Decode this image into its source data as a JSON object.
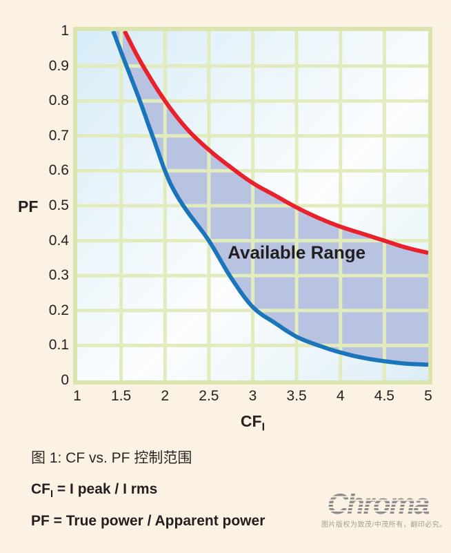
{
  "figure": {
    "caption": "图 1: CF vs. PF 控制范围",
    "formula_cf": {
      "main": "CF",
      "sub": "I",
      "rest": " = I peak / I rms"
    },
    "formula_pf": "PF = True power / Apparent power"
  },
  "logo": {
    "brand": "Chroma",
    "copyright": "图片版权为致茂/中茂所有，翻印必究。"
  },
  "colors": {
    "page_background": "#fcf2e4",
    "plot_border": "#d9e5ad",
    "grid": "#e2ebbc",
    "fill_between": "#b7c3e0",
    "upper_curve": "#e8212d",
    "lower_curve": "#1b75bb",
    "text": "#26211f",
    "logo_gray": "#8d8d8d"
  },
  "chart_data": {
    "type": "area",
    "title": "",
    "xlabel_main": "CF",
    "xlabel_sub": "I",
    "ylabel": "PF",
    "xlim": [
      1,
      5
    ],
    "ylim": [
      0,
      1
    ],
    "x_ticks": [
      "1",
      "1.5",
      "2",
      "2.5",
      "3",
      "3.5",
      "4",
      "4.5",
      "5"
    ],
    "y_ticks": [
      "1",
      "0.9",
      "0.8",
      "0.7",
      "0.6",
      "0.5",
      "0.4",
      "0.3",
      "0.2",
      "0.1",
      "0"
    ],
    "grid": {
      "x_step": 0.5,
      "y_step": 0.1,
      "on": true
    },
    "legend": "none",
    "annotation": {
      "text": "Available Range",
      "cf": 3.5,
      "pf": 0.365
    },
    "series": [
      {
        "name": "upper-limit",
        "color": "#e8212d",
        "x": [
          1.54,
          1.6,
          1.75,
          2.0,
          2.25,
          2.5,
          2.75,
          3.0,
          3.25,
          3.5,
          3.75,
          4.0,
          4.25,
          4.5,
          4.75,
          5.0
        ],
        "y": [
          1.0,
          0.97,
          0.9,
          0.8,
          0.72,
          0.66,
          0.61,
          0.565,
          0.53,
          0.495,
          0.465,
          0.44,
          0.42,
          0.4,
          0.38,
          0.365
        ]
      },
      {
        "name": "lower-limit",
        "color": "#1b75bb",
        "x": [
          1.41,
          1.5,
          1.6,
          1.7,
          1.8,
          1.9,
          2.0,
          2.1,
          2.25,
          2.5,
          2.75,
          3.0,
          3.25,
          3.5,
          3.75,
          4.0,
          4.25,
          4.5,
          4.75,
          5.0
        ],
        "y": [
          1.0,
          0.94,
          0.875,
          0.81,
          0.74,
          0.67,
          0.6,
          0.545,
          0.485,
          0.4,
          0.295,
          0.21,
          0.165,
          0.125,
          0.1,
          0.08,
          0.065,
          0.055,
          0.048,
          0.045
        ]
      }
    ],
    "fill_between": {
      "upper": "upper-limit",
      "lower": "lower-limit",
      "color": "#b7c3e0"
    }
  }
}
